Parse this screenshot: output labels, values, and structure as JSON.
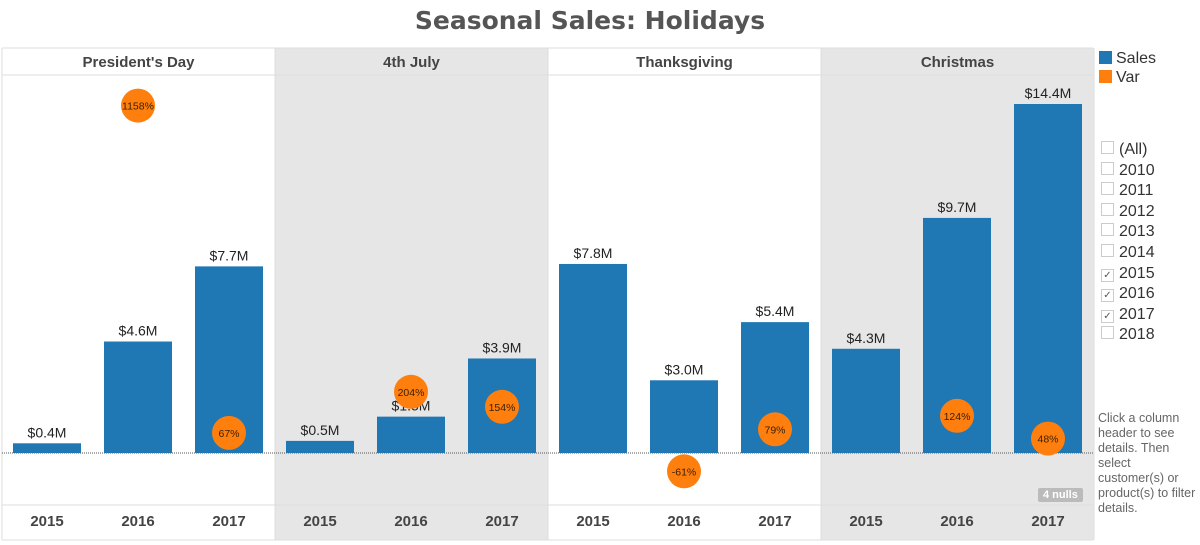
{
  "chart_data": {
    "type": "bar",
    "title": "Seasonal Sales: Holidays",
    "panels": [
      "President's Day",
      "4th July",
      "Thanksgiving",
      "Christmas"
    ],
    "categories": [
      "2015",
      "2016",
      "2017"
    ],
    "series": [
      {
        "name": "Sales",
        "color": "#1f77b4",
        "values": [
          [
            0.4,
            4.6,
            7.7
          ],
          [
            0.5,
            1.5,
            3.9
          ],
          [
            7.8,
            3.0,
            5.4
          ],
          [
            4.3,
            9.7,
            14.4
          ]
        ],
        "labels": [
          [
            "$0.4M",
            "$4.6M",
            "$7.7M"
          ],
          [
            "$0.5M",
            "$1.5M",
            "$3.9M"
          ],
          [
            "$7.8M",
            "$3.0M",
            "$5.4M"
          ],
          [
            "$4.3M",
            "$9.7M",
            "$14.4M"
          ]
        ]
      },
      {
        "name": "Var",
        "color": "#ff7f0e",
        "values": [
          [
            null,
            1158,
            67
          ],
          [
            null,
            204,
            154
          ],
          [
            null,
            -61,
            79
          ],
          [
            null,
            124,
            48
          ]
        ],
        "labels": [
          [
            null,
            "1158%",
            "67%"
          ],
          [
            null,
            "204%",
            "154%"
          ],
          [
            null,
            "-61%",
            "79%"
          ],
          [
            null,
            "124%",
            "48%"
          ]
        ]
      }
    ],
    "ylim_sales": [
      0,
      14.4
    ],
    "legend": [
      "Sales",
      "Var"
    ],
    "legend_position": "right"
  },
  "filter": {
    "items": [
      {
        "label": "(All)",
        "checked": false
      },
      {
        "label": "2010",
        "checked": false
      },
      {
        "label": "2011",
        "checked": false
      },
      {
        "label": "2012",
        "checked": false
      },
      {
        "label": "2013",
        "checked": false
      },
      {
        "label": "2014",
        "checked": false
      },
      {
        "label": "2015",
        "checked": true
      },
      {
        "label": "2016",
        "checked": true
      },
      {
        "label": "2017",
        "checked": true
      },
      {
        "label": "2018",
        "checked": false
      }
    ]
  },
  "note": "Click a column header to see details. Then select customer(s) or product(s) to filter details.",
  "nulls": "4 nulls"
}
